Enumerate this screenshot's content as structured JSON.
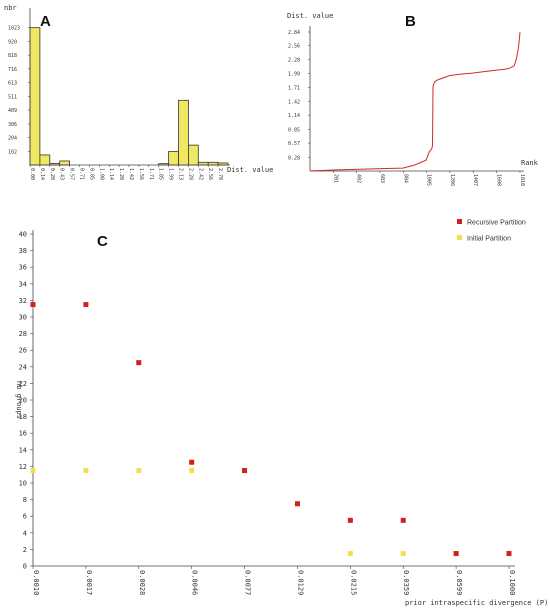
{
  "chart_data": [
    {
      "panel_label": "A",
      "type": "bar",
      "ylabel": "nbr",
      "xlabel": "Dist. value",
      "y_ticks": [
        "102",
        "204",
        "306",
        "409",
        "511",
        "613",
        "716",
        "818",
        "920",
        "1023"
      ],
      "ylim": [
        0,
        1080
      ],
      "categories": [
        "0.00",
        "0.14",
        "0.28",
        "0.43",
        "0.57",
        "0.71",
        "0.85",
        "1.00",
        "1.14",
        "1.28",
        "1.42",
        "1.56",
        "1.71",
        "1.85",
        "1.99",
        "2.13",
        "2.28",
        "2.42",
        "2.56",
        "2.70"
      ],
      "values": [
        1023,
        75,
        12,
        30,
        0,
        0,
        0,
        0,
        0,
        0,
        0,
        0,
        0,
        10,
        100,
        482,
        148,
        20,
        20,
        15
      ],
      "bar_color": "#f0e862"
    },
    {
      "panel_label": "B",
      "type": "line",
      "ylabel": "Dist. value",
      "xlabel": "Rank",
      "y_ticks": [
        "0.28",
        "0.57",
        "0.85",
        "1.14",
        "1.42",
        "1.71",
        "1.99",
        "2.28",
        "2.56",
        "2.84"
      ],
      "x_ticks": [
        "201",
        "402",
        "603",
        "804",
        "1005",
        "1206",
        "1407",
        "1608",
        "1810"
      ],
      "xlim": [
        0,
        1810
      ],
      "ylim": [
        0,
        2.84
      ],
      "x": [
        0,
        200,
        500,
        800,
        900,
        1000,
        1030,
        1045,
        1050,
        1056,
        1060,
        1065,
        1075,
        1100,
        1200,
        1300,
        1400,
        1500,
        1600,
        1680,
        1720,
        1760,
        1780,
        1795,
        1805,
        1810
      ],
      "y": [
        0.0,
        0.02,
        0.04,
        0.06,
        0.12,
        0.22,
        0.4,
        0.44,
        0.46,
        0.52,
        1.72,
        1.78,
        1.82,
        1.86,
        1.95,
        1.98,
        2.0,
        2.03,
        2.06,
        2.08,
        2.1,
        2.15,
        2.3,
        2.5,
        2.7,
        2.84
      ],
      "line_color": "#d22a2a"
    },
    {
      "panel_label": "C",
      "type": "scatter",
      "ylabel": "nb groups",
      "xlabel": "prior intraspecific divergence (P)",
      "y_ticks": [
        "0",
        "2",
        "4",
        "6",
        "8",
        "10",
        "12",
        "14",
        "16",
        "18",
        "20",
        "22",
        "24",
        "26",
        "28",
        "30",
        "32",
        "34",
        "36",
        "38",
        "40"
      ],
      "ylim": [
        0,
        40
      ],
      "categories": [
        "0.0010",
        "0.0017",
        "0.0028",
        "0.0046",
        "0.0077",
        "0.0129",
        "0.0215",
        "0.0359",
        "0.0599",
        "0.1000"
      ],
      "series": [
        {
          "name": "Recursive Partition",
          "color": "#d22020",
          "values": [
            31.5,
            31.5,
            24.5,
            12.5,
            11.5,
            7.5,
            5.5,
            5.5,
            1.5,
            1.5
          ]
        },
        {
          "name": "Initial Partition",
          "color": "#f0e050",
          "values": [
            11.5,
            11.5,
            11.5,
            11.5,
            11.5,
            7.5,
            1.5,
            1.5,
            1.5,
            1.5
          ]
        }
      ]
    }
  ]
}
